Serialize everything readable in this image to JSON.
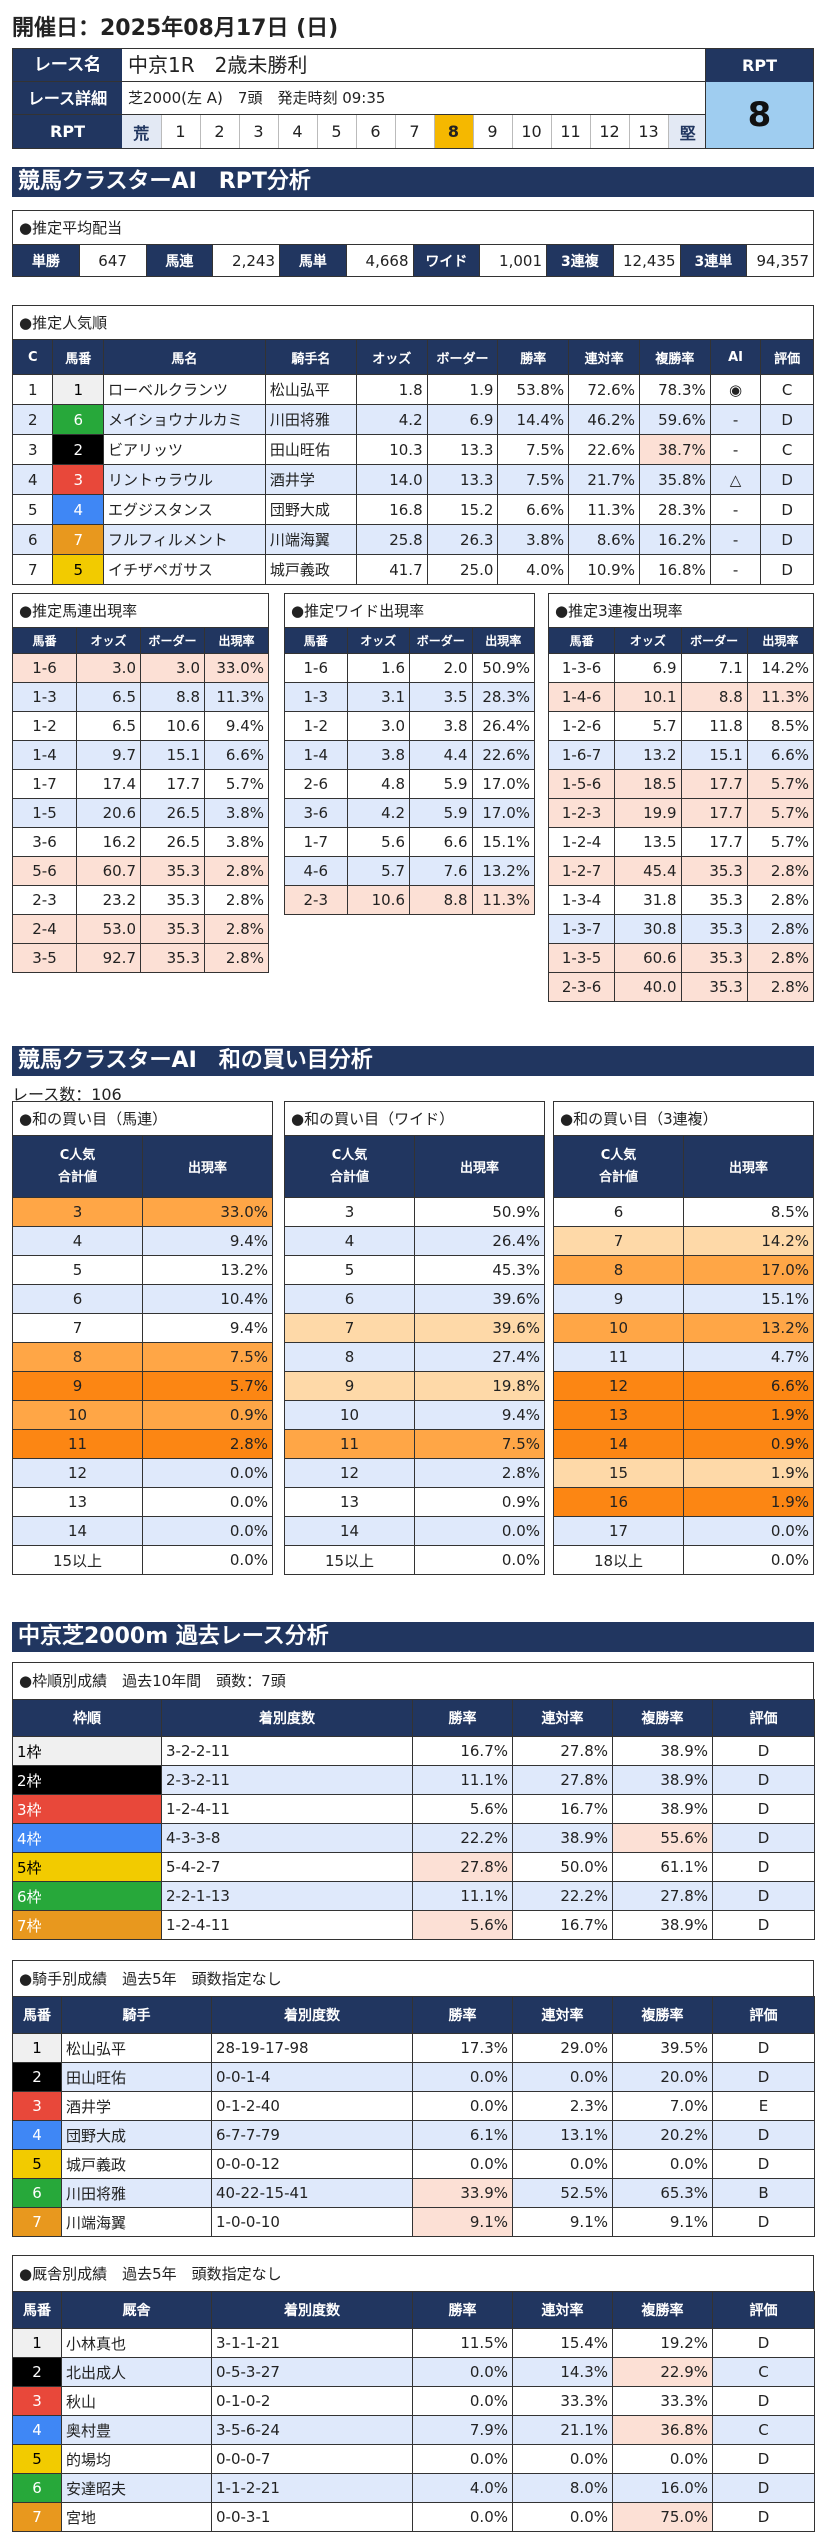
{
  "page_title": "開催日：2025年08月17日 (日)",
  "race_info": {
    "race_name_label": "レース名",
    "race_name": "中京1R　2歳未勝利",
    "race_detail_label": "レース詳細",
    "race_detail": "芝2000(左 A)　7頭　発走時刻 09:35",
    "rpt_label": "RPT",
    "rpt_scale": [
      "荒",
      "1",
      "2",
      "3",
      "4",
      "5",
      "6",
      "7",
      "8",
      "9",
      "10",
      "11",
      "12",
      "13",
      "堅"
    ],
    "rpt_selected": "8",
    "rpt_box_label": "RPT",
    "rpt_value": "8"
  },
  "rpt_section": {
    "banner": "競馬クラスターAI　RPT分析",
    "avg_payout": {
      "title": "●推定平均配当",
      "items": [
        {
          "label": "単勝",
          "value": "647"
        },
        {
          "label": "馬連",
          "value": "2,243"
        },
        {
          "label": "馬単",
          "value": "4,668"
        },
        {
          "label": "ワイド",
          "value": "1,001"
        },
        {
          "label": "3連複",
          "value": "12,435"
        },
        {
          "label": "3連単",
          "value": "94,357"
        }
      ]
    },
    "popularity": {
      "title": "●推定人気順",
      "headers": [
        "C",
        "馬番",
        "馬名",
        "騎手名",
        "オッズ",
        "ボーダー",
        "勝率",
        "連対率",
        "複勝率",
        "AI",
        "評価"
      ],
      "rows": [
        {
          "c": "1",
          "num": "1",
          "waku": 1,
          "name": "ローベルクランツ",
          "jockey": "松山弘平",
          "odds": "1.8",
          "border": "1.9",
          "win": "53.8%",
          "rentai": "72.6%",
          "fukusho": "78.3%",
          "ai": "◉",
          "eval": "C",
          "hl": ""
        },
        {
          "c": "2",
          "num": "6",
          "waku": 6,
          "name": "メイショウナルカミ",
          "jockey": "川田将雅",
          "odds": "4.2",
          "border": "6.9",
          "win": "14.4%",
          "rentai": "46.2%",
          "fukusho": "59.6%",
          "ai": "-",
          "eval": "D",
          "hl": ""
        },
        {
          "c": "3",
          "num": "2",
          "waku": 2,
          "name": "ビアリッツ",
          "jockey": "田山旺佑",
          "odds": "10.3",
          "border": "13.3",
          "win": "7.5%",
          "rentai": "22.6%",
          "fukusho": "38.7%",
          "ai": "-",
          "eval": "C",
          "hl": "fukusho"
        },
        {
          "c": "4",
          "num": "3",
          "waku": 3,
          "name": "リントゥラウル",
          "jockey": "酒井学",
          "odds": "14.0",
          "border": "13.3",
          "win": "7.5%",
          "rentai": "21.7%",
          "fukusho": "35.8%",
          "ai": "△",
          "eval": "D",
          "hl": ""
        },
        {
          "c": "5",
          "num": "4",
          "waku": 4,
          "name": "エグジスタンス",
          "jockey": "団野大成",
          "odds": "16.8",
          "border": "15.2",
          "win": "6.6%",
          "rentai": "11.3%",
          "fukusho": "28.3%",
          "ai": "-",
          "eval": "D",
          "hl": ""
        },
        {
          "c": "6",
          "num": "7",
          "waku": 7,
          "name": "フルフィルメント",
          "jockey": "川端海翼",
          "odds": "25.8",
          "border": "26.3",
          "win": "3.8%",
          "rentai": "8.6%",
          "fukusho": "16.2%",
          "ai": "-",
          "eval": "D",
          "hl": ""
        },
        {
          "c": "7",
          "num": "5",
          "waku": 5,
          "name": "イチザペガサス",
          "jockey": "城戸義政",
          "odds": "41.7",
          "border": "25.0",
          "win": "4.0%",
          "rentai": "10.9%",
          "fukusho": "16.8%",
          "ai": "-",
          "eval": "D",
          "hl": ""
        }
      ]
    },
    "umaren": {
      "title": "●推定馬連出現率",
      "headers": [
        "馬番",
        "オッズ",
        "ボーダー",
        "出現率"
      ],
      "rows": [
        {
          "combo": "1-6",
          "odds": "3.0",
          "border": "3.0",
          "rate": "33.0%",
          "bg": "pink"
        },
        {
          "combo": "1-3",
          "odds": "6.5",
          "border": "8.8",
          "rate": "11.3%",
          "bg": "blue"
        },
        {
          "combo": "1-2",
          "odds": "6.5",
          "border": "10.6",
          "rate": "9.4%",
          "bg": ""
        },
        {
          "combo": "1-4",
          "odds": "9.7",
          "border": "15.1",
          "rate": "6.6%",
          "bg": "blue"
        },
        {
          "combo": "1-7",
          "odds": "17.4",
          "border": "17.7",
          "rate": "5.7%",
          "bg": ""
        },
        {
          "combo": "1-5",
          "odds": "20.6",
          "border": "26.5",
          "rate": "3.8%",
          "bg": "blue"
        },
        {
          "combo": "3-6",
          "odds": "16.2",
          "border": "26.5",
          "rate": "3.8%",
          "bg": ""
        },
        {
          "combo": "5-6",
          "odds": "60.7",
          "border": "35.3",
          "rate": "2.8%",
          "bg": "pink"
        },
        {
          "combo": "2-3",
          "odds": "23.2",
          "border": "35.3",
          "rate": "2.8%",
          "bg": ""
        },
        {
          "combo": "2-4",
          "odds": "53.0",
          "border": "35.3",
          "rate": "2.8%",
          "bg": "pink"
        },
        {
          "combo": "3-5",
          "odds": "92.7",
          "border": "35.3",
          "rate": "2.8%",
          "bg": "pink"
        }
      ]
    },
    "wide": {
      "title": "●推定ワイド出現率",
      "headers": [
        "馬番",
        "オッズ",
        "ボーダー",
        "出現率"
      ],
      "rows": [
        {
          "combo": "1-6",
          "odds": "1.6",
          "border": "2.0",
          "rate": "50.9%",
          "bg": ""
        },
        {
          "combo": "1-3",
          "odds": "3.1",
          "border": "3.5",
          "rate": "28.3%",
          "bg": "blue"
        },
        {
          "combo": "1-2",
          "odds": "3.0",
          "border": "3.8",
          "rate": "26.4%",
          "bg": ""
        },
        {
          "combo": "1-4",
          "odds": "3.8",
          "border": "4.4",
          "rate": "22.6%",
          "bg": "blue"
        },
        {
          "combo": "2-6",
          "odds": "4.8",
          "border": "5.9",
          "rate": "17.0%",
          "bg": ""
        },
        {
          "combo": "3-6",
          "odds": "4.2",
          "border": "5.9",
          "rate": "17.0%",
          "bg": "blue"
        },
        {
          "combo": "1-7",
          "odds": "5.6",
          "border": "6.6",
          "rate": "15.1%",
          "bg": ""
        },
        {
          "combo": "4-6",
          "odds": "5.7",
          "border": "7.6",
          "rate": "13.2%",
          "bg": "blue"
        },
        {
          "combo": "2-3",
          "odds": "10.6",
          "border": "8.8",
          "rate": "11.3%",
          "bg": "pink"
        }
      ]
    },
    "sanrenpuku": {
      "title": "●推定3連複出現率",
      "headers": [
        "馬番",
        "オッズ",
        "ボーダー",
        "出現率"
      ],
      "rows": [
        {
          "combo": "1-3-6",
          "odds": "6.9",
          "border": "7.1",
          "rate": "14.2%",
          "bg": ""
        },
        {
          "combo": "1-4-6",
          "odds": "10.1",
          "border": "8.8",
          "rate": "11.3%",
          "bg": "pink"
        },
        {
          "combo": "1-2-6",
          "odds": "5.7",
          "border": "11.8",
          "rate": "8.5%",
          "bg": ""
        },
        {
          "combo": "1-6-7",
          "odds": "13.2",
          "border": "15.1",
          "rate": "6.6%",
          "bg": "blue"
        },
        {
          "combo": "1-5-6",
          "odds": "18.5",
          "border": "17.7",
          "rate": "5.7%",
          "bg": "pink"
        },
        {
          "combo": "1-2-3",
          "odds": "19.9",
          "border": "17.7",
          "rate": "5.7%",
          "bg": "pink"
        },
        {
          "combo": "1-2-4",
          "odds": "13.5",
          "border": "17.7",
          "rate": "5.7%",
          "bg": ""
        },
        {
          "combo": "1-2-7",
          "odds": "45.4",
          "border": "35.3",
          "rate": "2.8%",
          "bg": "pink"
        },
        {
          "combo": "1-3-4",
          "odds": "31.8",
          "border": "35.3",
          "rate": "2.8%",
          "bg": ""
        },
        {
          "combo": "1-3-7",
          "odds": "30.8",
          "border": "35.3",
          "rate": "2.8%",
          "bg": "blue"
        },
        {
          "combo": "1-3-5",
          "odds": "60.6",
          "border": "35.3",
          "rate": "2.8%",
          "bg": "pink"
        },
        {
          "combo": "2-3-6",
          "odds": "40.0",
          "border": "35.3",
          "rate": "2.8%",
          "bg": "pink"
        }
      ]
    }
  },
  "sum_section": {
    "banner": "競馬クラスターAI　和の買い目分析",
    "race_count": "レース数：106",
    "header_sum_line1": "C人気",
    "header_sum_line2": "合計値",
    "header_rate": "出現率",
    "tables": [
      {
        "title": "●和の買い目（馬連）",
        "rows": [
          {
            "sum": "3",
            "rate": "33.0%",
            "bg": "org1"
          },
          {
            "sum": "4",
            "rate": "9.4%",
            "bg": "blue"
          },
          {
            "sum": "5",
            "rate": "13.2%",
            "bg": ""
          },
          {
            "sum": "6",
            "rate": "10.4%",
            "bg": "blue"
          },
          {
            "sum": "7",
            "rate": "9.4%",
            "bg": ""
          },
          {
            "sum": "8",
            "rate": "7.5%",
            "bg": "org1"
          },
          {
            "sum": "9",
            "rate": "5.7%",
            "bg": "org2"
          },
          {
            "sum": "10",
            "rate": "0.9%",
            "bg": "org1"
          },
          {
            "sum": "11",
            "rate": "2.8%",
            "bg": "org2"
          },
          {
            "sum": "12",
            "rate": "0.0%",
            "bg": "blue"
          },
          {
            "sum": "13",
            "rate": "0.0%",
            "bg": ""
          },
          {
            "sum": "14",
            "rate": "0.0%",
            "bg": "blue"
          },
          {
            "sum": "15以上",
            "rate": "0.0%",
            "bg": ""
          }
        ]
      },
      {
        "title": "●和の買い目（ワイド）",
        "rows": [
          {
            "sum": "3",
            "rate": "50.9%",
            "bg": ""
          },
          {
            "sum": "4",
            "rate": "26.4%",
            "bg": "blue"
          },
          {
            "sum": "5",
            "rate": "45.3%",
            "bg": ""
          },
          {
            "sum": "6",
            "rate": "39.6%",
            "bg": "blue"
          },
          {
            "sum": "7",
            "rate": "39.6%",
            "bg": "org3"
          },
          {
            "sum": "8",
            "rate": "27.4%",
            "bg": "blue"
          },
          {
            "sum": "9",
            "rate": "19.8%",
            "bg": "org3"
          },
          {
            "sum": "10",
            "rate": "9.4%",
            "bg": "blue"
          },
          {
            "sum": "11",
            "rate": "7.5%",
            "bg": "org1"
          },
          {
            "sum": "12",
            "rate": "2.8%",
            "bg": "blue"
          },
          {
            "sum": "13",
            "rate": "0.9%",
            "bg": ""
          },
          {
            "sum": "14",
            "rate": "0.0%",
            "bg": "blue"
          },
          {
            "sum": "15以上",
            "rate": "0.0%",
            "bg": ""
          }
        ]
      },
      {
        "title": "●和の買い目（3連複）",
        "rows": [
          {
            "sum": "6",
            "rate": "8.5%",
            "bg": ""
          },
          {
            "sum": "7",
            "rate": "14.2%",
            "bg": "org3"
          },
          {
            "sum": "8",
            "rate": "17.0%",
            "bg": "org1"
          },
          {
            "sum": "9",
            "rate": "15.1%",
            "bg": "blue"
          },
          {
            "sum": "10",
            "rate": "13.2%",
            "bg": "org1"
          },
          {
            "sum": "11",
            "rate": "4.7%",
            "bg": "blue"
          },
          {
            "sum": "12",
            "rate": "6.6%",
            "bg": "org2"
          },
          {
            "sum": "13",
            "rate": "1.9%",
            "bg": "org2"
          },
          {
            "sum": "14",
            "rate": "0.9%",
            "bg": "org2"
          },
          {
            "sum": "15",
            "rate": "1.9%",
            "bg": "org3"
          },
          {
            "sum": "16",
            "rate": "1.9%",
            "bg": "org2"
          },
          {
            "sum": "17",
            "rate": "0.0%",
            "bg": "blue"
          },
          {
            "sum": "18以上",
            "rate": "0.0%",
            "bg": ""
          }
        ]
      }
    ]
  },
  "past_section": {
    "banner": "中京芝2000m 過去レース分析",
    "waku": {
      "title": "●枠順別成績　過去10年間　頭数：7頭",
      "headers": [
        "枠順",
        "着別度数",
        "勝率",
        "連対率",
        "複勝率",
        "評価"
      ],
      "rows": [
        {
          "label": "1枠",
          "waku": 1,
          "record": "3-2-2-11",
          "win": "16.7%",
          "rentai": "27.8%",
          "fukusho": "38.9%",
          "eval": "D",
          "hl": ""
        },
        {
          "label": "2枠",
          "waku": 2,
          "record": "2-3-2-11",
          "win": "11.1%",
          "rentai": "27.8%",
          "fukusho": "38.9%",
          "eval": "D",
          "hl": ""
        },
        {
          "label": "3枠",
          "waku": 3,
          "record": "1-2-4-11",
          "win": "5.6%",
          "rentai": "16.7%",
          "fukusho": "38.9%",
          "eval": "D",
          "hl": ""
        },
        {
          "label": "4枠",
          "waku": 4,
          "record": "4-3-3-8",
          "win": "22.2%",
          "rentai": "38.9%",
          "fukusho": "55.6%",
          "eval": "D",
          "hl": "fukusho"
        },
        {
          "label": "5枠",
          "waku": 5,
          "record": "5-4-2-7",
          "win": "27.8%",
          "rentai": "50.0%",
          "fukusho": "61.1%",
          "eval": "D",
          "hl": "win"
        },
        {
          "label": "6枠",
          "waku": 6,
          "record": "2-2-1-13",
          "win": "11.1%",
          "rentai": "22.2%",
          "fukusho": "27.8%",
          "eval": "D",
          "hl": ""
        },
        {
          "label": "7枠",
          "waku": 7,
          "record": "1-2-4-11",
          "win": "5.6%",
          "rentai": "16.7%",
          "fukusho": "38.9%",
          "eval": "D",
          "hl": "win"
        }
      ]
    },
    "jockey": {
      "title": "●騎手別成績　過去5年　頭数指定なし",
      "headers": [
        "馬番",
        "騎手",
        "着別度数",
        "勝率",
        "連対率",
        "複勝率",
        "評価"
      ],
      "rows": [
        {
          "num": "1",
          "waku": 1,
          "name": "松山弘平",
          "record": "28-19-17-98",
          "win": "17.3%",
          "rentai": "29.0%",
          "fukusho": "39.5%",
          "eval": "D",
          "hl": ""
        },
        {
          "num": "2",
          "waku": 2,
          "name": "田山旺佑",
          "record": "0-0-1-4",
          "win": "0.0%",
          "rentai": "0.0%",
          "fukusho": "20.0%",
          "eval": "D",
          "hl": ""
        },
        {
          "num": "3",
          "waku": 3,
          "name": "酒井学",
          "record": "0-1-2-40",
          "win": "0.0%",
          "rentai": "2.3%",
          "fukusho": "7.0%",
          "eval": "E",
          "hl": ""
        },
        {
          "num": "4",
          "waku": 4,
          "name": "団野大成",
          "record": "6-7-7-79",
          "win": "6.1%",
          "rentai": "13.1%",
          "fukusho": "20.2%",
          "eval": "D",
          "hl": ""
        },
        {
          "num": "5",
          "waku": 5,
          "name": "城戸義政",
          "record": "0-0-0-12",
          "win": "0.0%",
          "rentai": "0.0%",
          "fukusho": "0.0%",
          "eval": "D",
          "hl": ""
        },
        {
          "num": "6",
          "waku": 6,
          "name": "川田将雅",
          "record": "40-22-15-41",
          "win": "33.9%",
          "rentai": "52.5%",
          "fukusho": "65.3%",
          "eval": "B",
          "hl": "win"
        },
        {
          "num": "7",
          "waku": 7,
          "name": "川端海翼",
          "record": "1-0-0-10",
          "win": "9.1%",
          "rentai": "9.1%",
          "fukusho": "9.1%",
          "eval": "D",
          "hl": "win"
        }
      ]
    },
    "trainer": {
      "title": "●厩舎別成績　過去5年　頭数指定なし",
      "headers": [
        "馬番",
        "厩舎",
        "着別度数",
        "勝率",
        "連対率",
        "複勝率",
        "評価"
      ],
      "rows": [
        {
          "num": "1",
          "waku": 1,
          "name": "小林真也",
          "record": "3-1-1-21",
          "win": "11.5%",
          "rentai": "15.4%",
          "fukusho": "19.2%",
          "eval": "D",
          "hl": ""
        },
        {
          "num": "2",
          "waku": 2,
          "name": "北出成人",
          "record": "0-5-3-27",
          "win": "0.0%",
          "rentai": "14.3%",
          "fukusho": "22.9%",
          "eval": "C",
          "hl": "fukusho"
        },
        {
          "num": "3",
          "waku": 3,
          "name": "秋山",
          "record": "0-1-0-2",
          "win": "0.0%",
          "rentai": "33.3%",
          "fukusho": "33.3%",
          "eval": "D",
          "hl": ""
        },
        {
          "num": "4",
          "waku": 4,
          "name": "奥村豊",
          "record": "3-5-6-24",
          "win": "7.9%",
          "rentai": "21.1%",
          "fukusho": "36.8%",
          "eval": "C",
          "hl": "fukusho"
        },
        {
          "num": "5",
          "waku": 5,
          "name": "的場均",
          "record": "0-0-0-7",
          "win": "0.0%",
          "rentai": "0.0%",
          "fukusho": "0.0%",
          "eval": "D",
          "hl": ""
        },
        {
          "num": "6",
          "waku": 6,
          "name": "安達昭夫",
          "record": "1-1-2-21",
          "win": "4.0%",
          "rentai": "8.0%",
          "fukusho": "16.0%",
          "eval": "D",
          "hl": ""
        },
        {
          "num": "7",
          "waku": 7,
          "name": "宮地",
          "record": "0-0-3-1",
          "win": "0.0%",
          "rentai": "0.0%",
          "fukusho": "75.0%",
          "eval": "D",
          "hl": "fukusho"
        }
      ]
    }
  },
  "colors": {
    "navy": "#213660",
    "row_blue": "#dfe9fb",
    "row_pink": "#fce0d5",
    "orange_mid": "#ffa646",
    "orange_dark": "#fc8613",
    "orange_light": "#fed9a8",
    "rpt_selected": "#f5b800",
    "rpt_box": "#9fcdf0"
  }
}
